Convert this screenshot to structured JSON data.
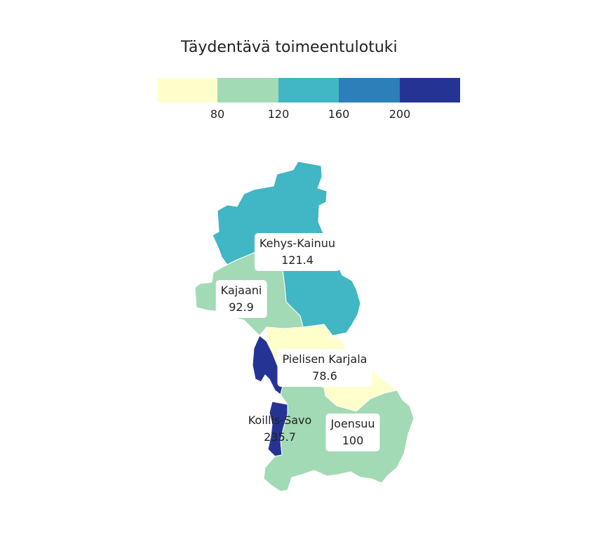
{
  "map": {
    "title": "Täydentävä toimeentulotuki",
    "legend": {
      "colors": [
        "#ffffcc",
        "#a1dab4",
        "#41b6c4",
        "#2c7fb8",
        "#253494"
      ],
      "ticks": [
        "80",
        "120",
        "160",
        "200"
      ]
    },
    "regions": [
      {
        "name": "Kehys-Kainuu",
        "value": "121.4",
        "color": "#41b6c4"
      },
      {
        "name": "Kajaani",
        "value": "92.9",
        "color": "#a1dab4"
      },
      {
        "name": "Pielisen Karjala",
        "value": "78.6",
        "color": "#ffffcc"
      },
      {
        "name": "Koillis-Savo",
        "value": "235.7",
        "color": "#253494"
      },
      {
        "name": "Joensuu",
        "value": "100",
        "color": "#a1dab4"
      }
    ]
  }
}
